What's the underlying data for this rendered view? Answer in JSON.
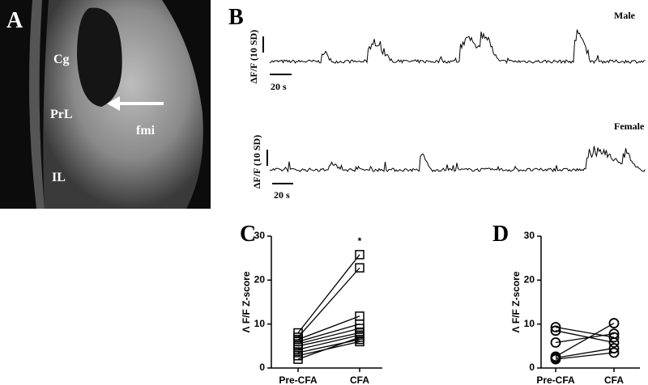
{
  "panels": {
    "A": {
      "letter": "A",
      "labels": [
        "Cg",
        "PrL",
        "fmi",
        "IL"
      ]
    },
    "B": {
      "letter": "B",
      "traces": [
        {
          "name": "Male",
          "scale_y": "ΔF/F (10 SD)",
          "scale_x": "20 s"
        },
        {
          "name": "Female",
          "scale_y": "ΔF/F (10 SD)",
          "scale_x": "20 s"
        }
      ]
    }
  },
  "chart_data": [
    {
      "type": "line",
      "panel": "C",
      "ylabel": "Λ F/F Z-score",
      "categories": [
        "Pre-CFA",
        "CFA"
      ],
      "ylim": [
        0,
        30
      ],
      "yticks": [
        0,
        10,
        20,
        30
      ],
      "marker": "square",
      "color": "#000000",
      "annotation": "*",
      "series": [
        {
          "values": [
            8,
            25.8
          ]
        },
        {
          "values": [
            7,
            22.8
          ]
        },
        {
          "values": [
            6.5,
            11.8
          ]
        },
        {
          "values": [
            6,
            10
          ]
        },
        {
          "values": [
            5.5,
            9
          ]
        },
        {
          "values": [
            5,
            8
          ]
        },
        {
          "values": [
            4.2,
            7.5
          ]
        },
        {
          "values": [
            3.5,
            6.5
          ]
        },
        {
          "values": [
            2.8,
            6
          ]
        },
        {
          "values": [
            2,
            7
          ]
        }
      ]
    },
    {
      "type": "line",
      "panel": "D",
      "ylabel": "Λ F/F Z-score",
      "categories": [
        "Pre-CFA",
        "CFA"
      ],
      "ylim": [
        0,
        30
      ],
      "yticks": [
        0,
        10,
        20,
        30
      ],
      "marker": "circle",
      "color": "#000000",
      "series": [
        {
          "values": [
            9.3,
            7
          ]
        },
        {
          "values": [
            8.5,
            5.8
          ]
        },
        {
          "values": [
            5.8,
            7.8
          ]
        },
        {
          "values": [
            2.6,
            10.2
          ]
        },
        {
          "values": [
            2.3,
            4.5
          ]
        },
        {
          "values": [
            2,
            3.5
          ]
        }
      ]
    }
  ]
}
